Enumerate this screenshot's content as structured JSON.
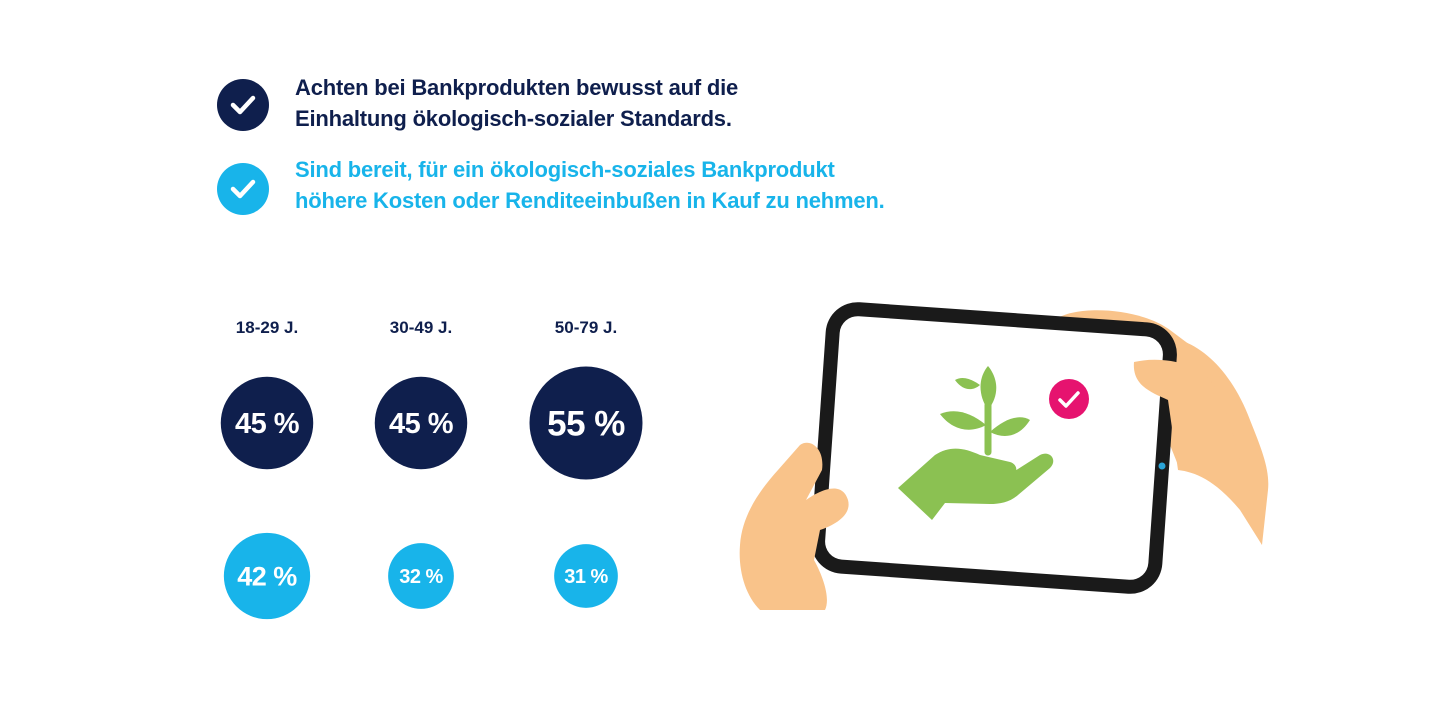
{
  "colors": {
    "navy": "#0f1f4d",
    "cyan": "#18b4ea",
    "green": "#8bc152",
    "pink": "#e6136f",
    "skin": "#f9c38a"
  },
  "legend": [
    {
      "text": "Achten bei Bankprodukten bewusst auf die\nEinhaltung ökologisch-sozialer Standards.",
      "color": "#0f1f4d",
      "icon": "check-icon"
    },
    {
      "text": "Sind bereit, für ein ökologisch-soziales Bankprodukt\nhöhere Kosten oder Renditeeinbußen in Kauf zu nehmen.",
      "color": "#18b4ea",
      "icon": "check-icon"
    }
  ],
  "illustration": {
    "icons": [
      "tablet-icon",
      "hands-icon",
      "plant-in-hand-icon",
      "check-badge-icon"
    ]
  },
  "chart_data": {
    "type": "bubble",
    "categories": [
      "18-29 J.",
      "30-49 J.",
      "50-79 J."
    ],
    "series": [
      {
        "values": [
          45,
          45,
          55
        ],
        "labels": [
          "45 %",
          "45 %",
          "55 %"
        ],
        "color": "#0f1f4d"
      },
      {
        "values": [
          42,
          32,
          31
        ],
        "labels": [
          "42 %",
          "32 %",
          "31 %"
        ],
        "color": "#18b4ea"
      }
    ],
    "unit": "%"
  }
}
